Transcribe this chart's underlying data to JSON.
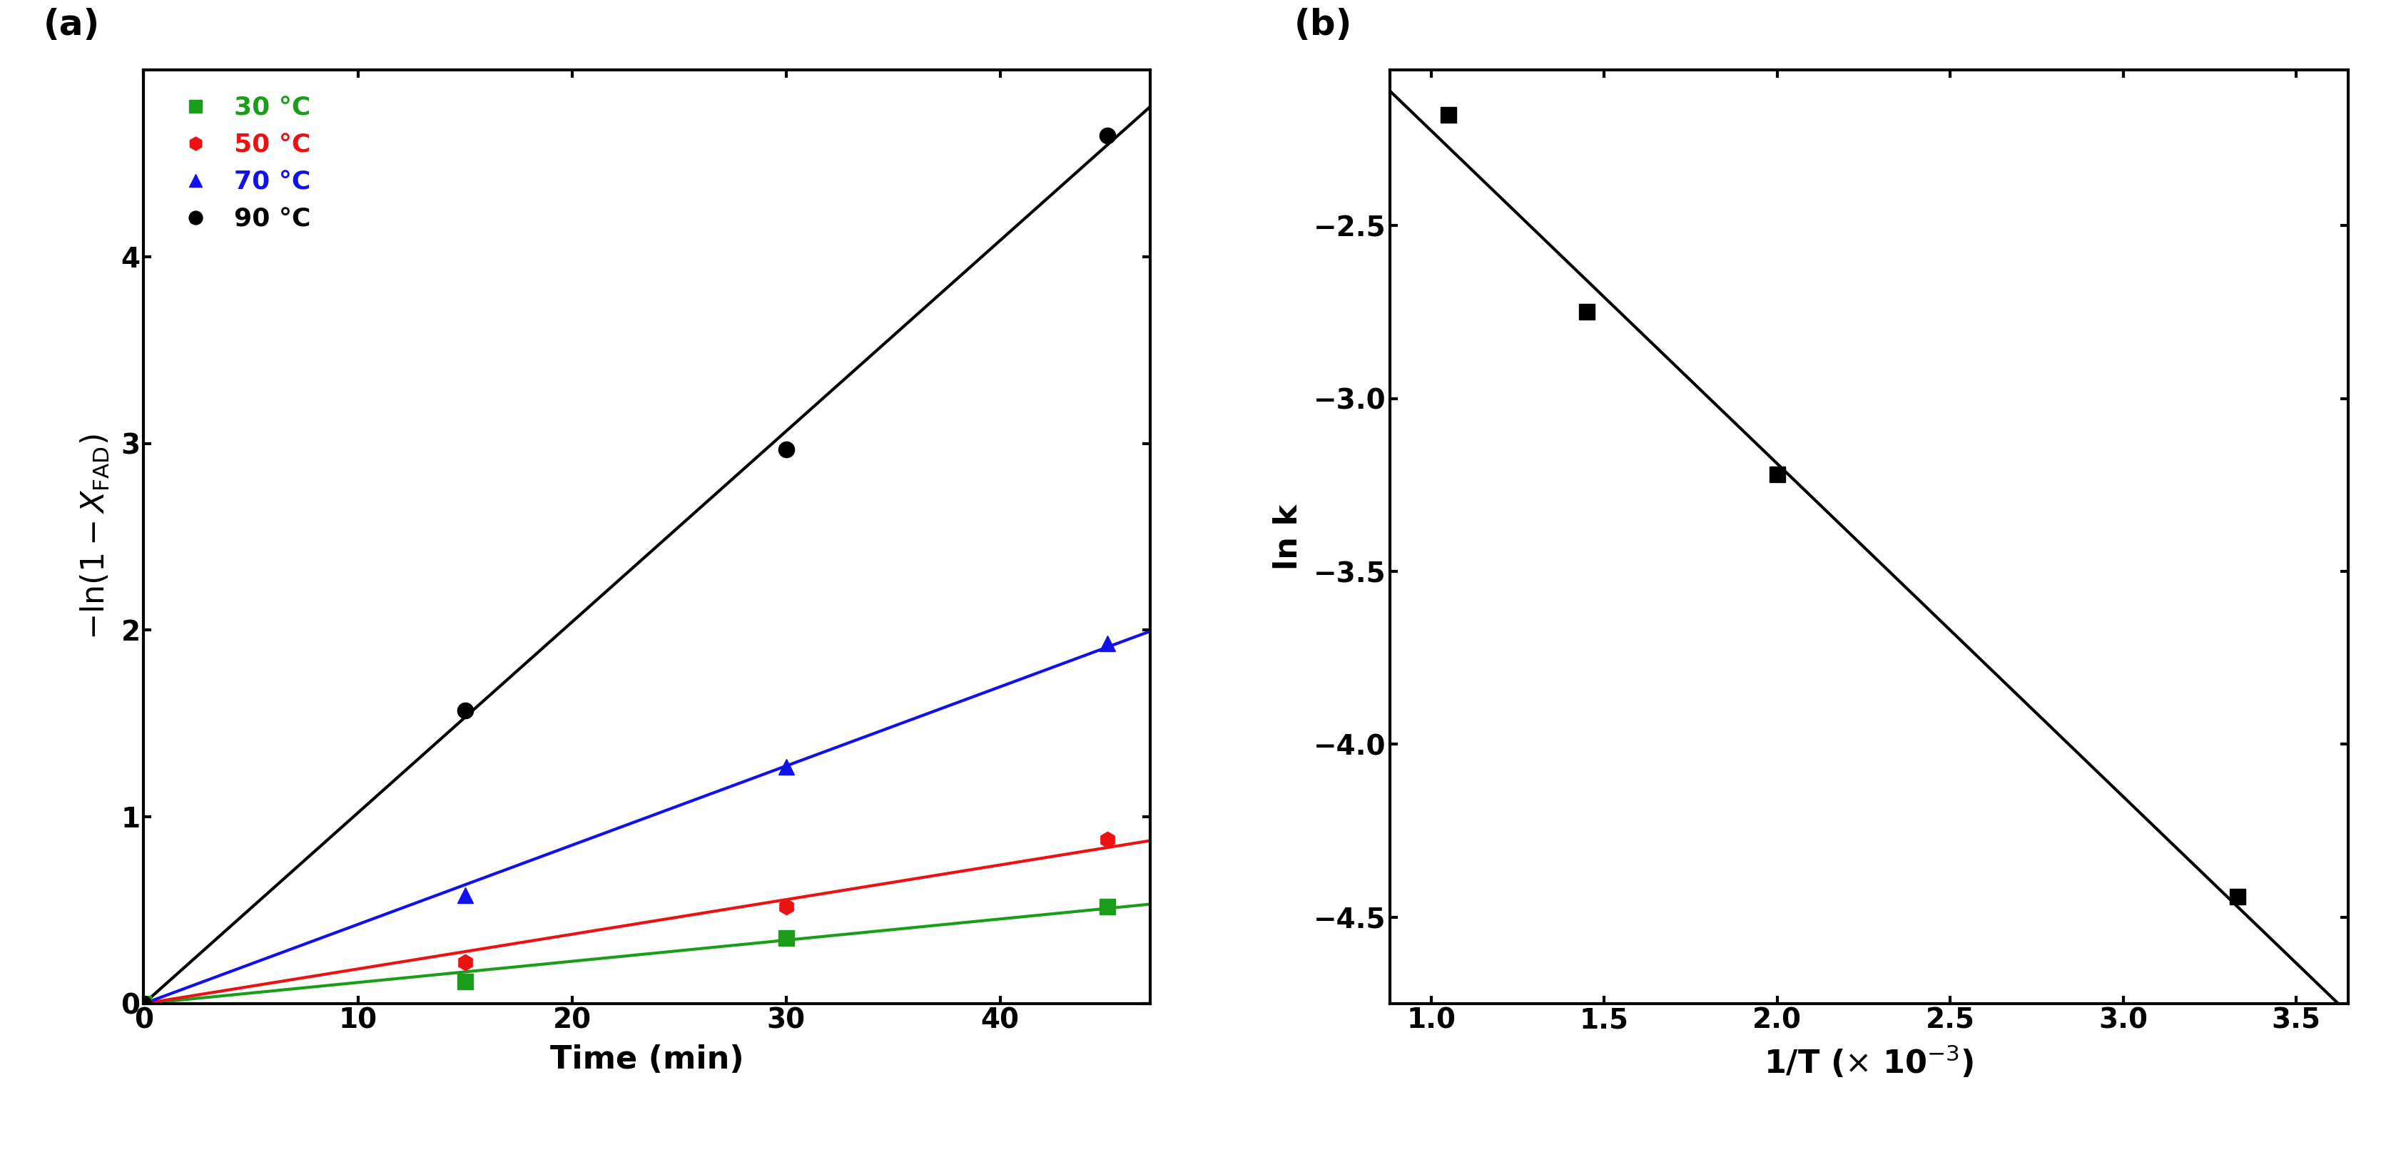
{
  "panel_a": {
    "title": "(a)",
    "xlabel": "Time (min)",
    "xlim": [
      0,
      47
    ],
    "ylim": [
      0,
      5.0
    ],
    "xticks": [
      0,
      10,
      20,
      30,
      40
    ],
    "yticks": [
      0,
      1,
      2,
      3,
      4
    ],
    "series": [
      {
        "label": "30 °C",
        "color": "#1a9e1a",
        "marker": "s",
        "x": [
          0,
          15,
          30,
          45
        ],
        "y": [
          0,
          0.12,
          0.35,
          0.52
        ]
      },
      {
        "label": "50 °C",
        "color": "#ee1111",
        "marker": "h",
        "x": [
          0,
          15,
          30,
          45
        ],
        "y": [
          0,
          0.22,
          0.52,
          0.88
        ]
      },
      {
        "label": "70 °C",
        "color": "#1111ee",
        "marker": "^",
        "x": [
          0,
          15,
          30,
          45
        ],
        "y": [
          0,
          0.58,
          1.27,
          1.93
        ]
      },
      {
        "label": "90 °C",
        "color": "#000000",
        "marker": "o",
        "x": [
          0,
          15,
          30,
          45
        ],
        "y": [
          0,
          1.57,
          2.97,
          4.65
        ]
      }
    ]
  },
  "panel_b": {
    "title": "(b)",
    "xlim": [
      0.00088,
      0.00365
    ],
    "ylim": [
      -4.75,
      -2.05
    ],
    "xticks": [
      0.001,
      0.0015,
      0.002,
      0.0025,
      0.003,
      0.0035
    ],
    "yticks": [
      -4.5,
      -4.0,
      -3.5,
      -3.0,
      -2.5
    ],
    "x_data": [
      0.00105,
      0.00145,
      0.002,
      0.00333
    ],
    "y_data": [
      -2.18,
      -2.75,
      -3.22,
      -4.44
    ],
    "color": "#000000",
    "marker": "s"
  },
  "line_width": 3.0,
  "marker_size": 16,
  "label_font_size": 32,
  "tick_font_size": 28,
  "legend_font_size": 26,
  "panel_label_font_size": 36
}
